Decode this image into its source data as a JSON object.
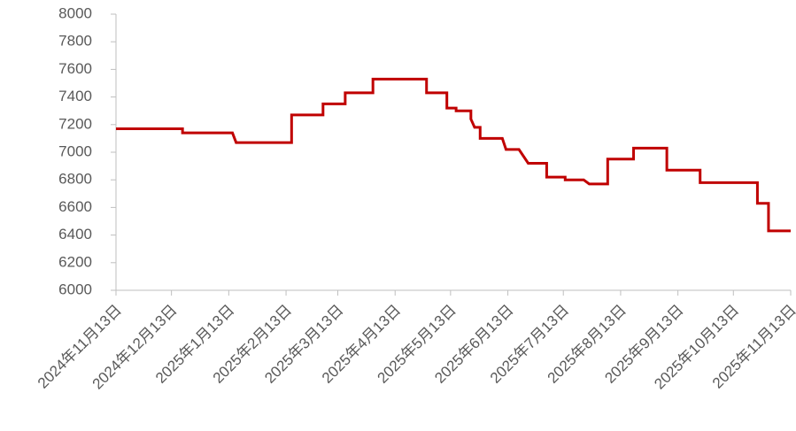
{
  "chart_data": {
    "type": "line",
    "x": [
      "2024-11-13",
      "2024-12-19",
      "2024-12-19",
      "2025-01-15",
      "2025-01-17",
      "2025-02-16",
      "2025-02-16",
      "2025-03-05",
      "2025-03-05",
      "2025-03-17",
      "2025-03-17",
      "2025-04-01",
      "2025-04-01",
      "2025-04-30",
      "2025-04-30",
      "2025-05-11",
      "2025-05-11",
      "2025-05-16",
      "2025-05-16",
      "2025-05-24",
      "2025-05-24",
      "2025-05-26",
      "2025-05-29",
      "2025-05-29",
      "2025-06-10",
      "2025-06-12",
      "2025-06-19",
      "2025-06-24",
      "2025-07-04",
      "2025-07-04",
      "2025-07-14",
      "2025-07-14",
      "2025-07-24",
      "2025-07-27",
      "2025-08-06",
      "2025-08-06",
      "2025-08-20",
      "2025-08-20",
      "2025-09-07",
      "2025-09-07",
      "2025-09-25",
      "2025-09-25",
      "2025-10-26",
      "2025-10-26",
      "2025-11-01",
      "2025-11-01",
      "2025-11-13"
    ],
    "series": [
      {
        "color": "#c00000",
        "values": [
          7170,
          7170,
          7140,
          7140,
          7070,
          7070,
          7270,
          7270,
          7350,
          7350,
          7430,
          7430,
          7530,
          7530,
          7430,
          7430,
          7320,
          7320,
          7300,
          7300,
          7240,
          7180,
          7180,
          7100,
          7100,
          7020,
          7020,
          6920,
          6920,
          6820,
          6820,
          6800,
          6800,
          6770,
          6770,
          6950,
          6950,
          7030,
          7030,
          6870,
          6870,
          6780,
          6780,
          6630,
          6630,
          6430,
          6430
        ]
      }
    ],
    "xlim": [
      "2024-11-13",
      "2025-11-13"
    ],
    "xticks": [
      {
        "value": "2024-11-13",
        "label": "2024年11月13日"
      },
      {
        "value": "2024-12-13",
        "label": "2024年12月13日"
      },
      {
        "value": "2025-01-13",
        "label": "2025年1月13日"
      },
      {
        "value": "2025-02-13",
        "label": "2025年2月13日"
      },
      {
        "value": "2025-03-13",
        "label": "2025年3月13日"
      },
      {
        "value": "2025-04-13",
        "label": "2025年4月13日"
      },
      {
        "value": "2025-05-13",
        "label": "2025年5月13日"
      },
      {
        "value": "2025-06-13",
        "label": "2025年6月13日"
      },
      {
        "value": "2025-07-13",
        "label": "2025年7月13日"
      },
      {
        "value": "2025-08-13",
        "label": "2025年8月13日"
      },
      {
        "value": "2025-09-13",
        "label": "2025年9月13日"
      },
      {
        "value": "2025-10-13",
        "label": "2025年10月13日"
      },
      {
        "value": "2025-11-13",
        "label": "2025年11月13日"
      }
    ],
    "ylim": [
      6000,
      8000
    ],
    "yticks": [
      6000,
      6200,
      6400,
      6600,
      6800,
      7000,
      7200,
      7400,
      7600,
      7800,
      8000
    ],
    "grid": false
  }
}
